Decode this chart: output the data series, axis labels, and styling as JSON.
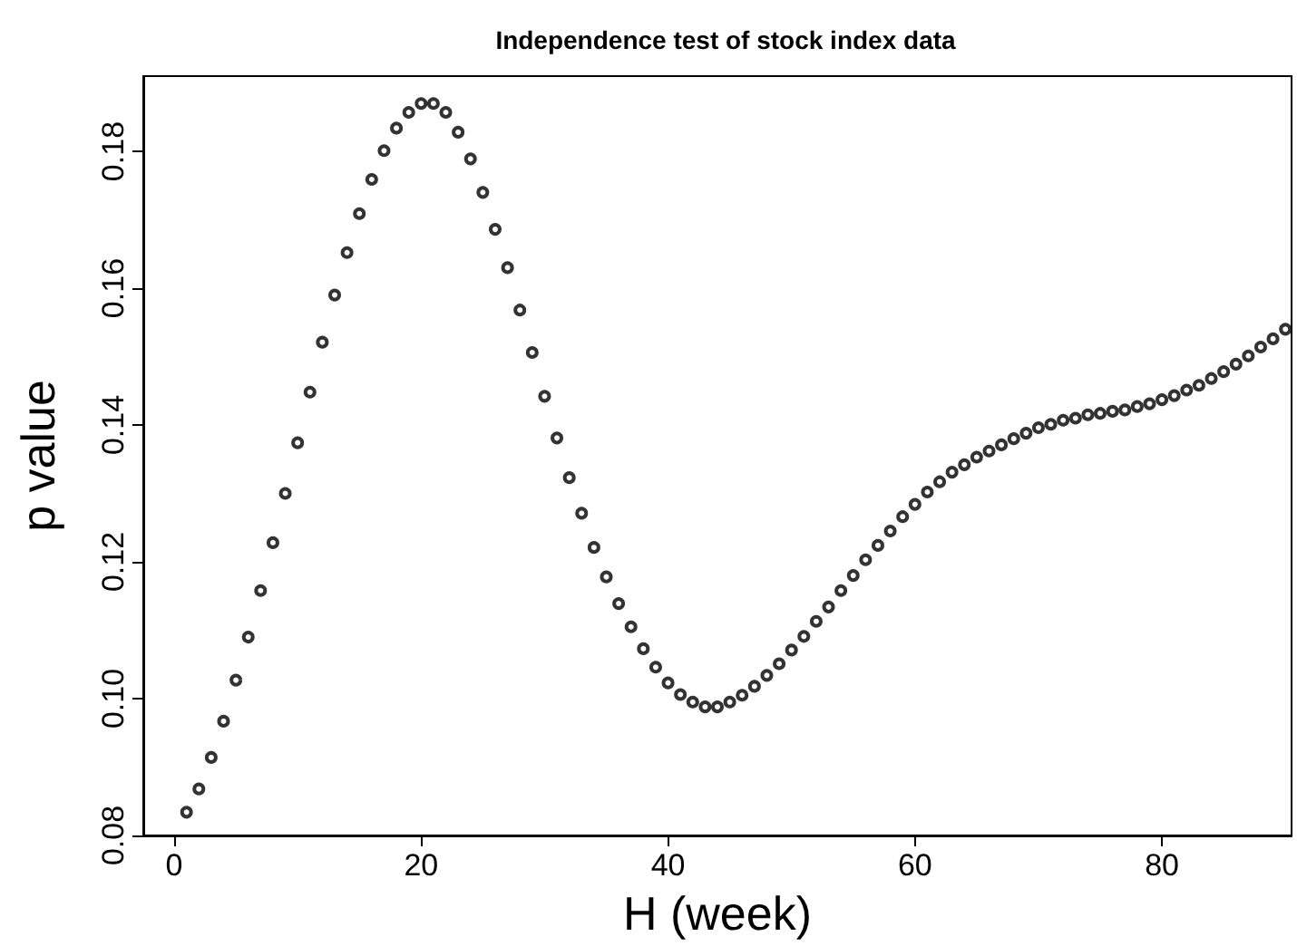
{
  "chart_data": {
    "type": "scatter",
    "title": "Independence test of stock index data",
    "xlabel": "H (week)",
    "ylabel": "p value",
    "x": [
      1,
      2,
      3,
      4,
      5,
      6,
      7,
      8,
      9,
      10,
      11,
      12,
      13,
      14,
      15,
      16,
      17,
      18,
      19,
      20,
      21,
      22,
      23,
      24,
      25,
      26,
      27,
      28,
      29,
      30,
      31,
      32,
      33,
      34,
      35,
      36,
      37,
      38,
      39,
      40,
      41,
      42,
      43,
      44,
      45,
      46,
      47,
      48,
      49,
      50,
      51,
      52,
      53,
      54,
      55,
      56,
      57,
      58,
      59,
      60,
      61,
      62,
      63,
      64,
      65,
      66,
      67,
      68,
      69,
      70,
      71,
      72,
      73,
      74,
      75,
      76,
      77,
      78,
      79,
      80,
      81,
      82,
      83,
      84,
      85,
      86,
      87,
      88,
      89,
      90
    ],
    "series": [
      {
        "color": "#000000",
        "values": [
          0.0834,
          0.0868,
          0.0914,
          0.0967,
          0.1027,
          0.109,
          0.1158,
          0.1228,
          0.13,
          0.1374,
          0.1448,
          0.1521,
          0.159,
          0.1652,
          0.1709,
          0.1759,
          0.1801,
          0.1834,
          0.1857,
          0.187,
          0.187,
          0.1857,
          0.1828,
          0.1789,
          0.174,
          0.1686,
          0.163,
          0.1568,
          0.1506,
          0.1442,
          0.1381,
          0.1323,
          0.1271,
          0.1221,
          0.1178,
          0.1139,
          0.1105,
          0.1073,
          0.1046,
          0.1023,
          0.1006,
          0.0995,
          0.0988,
          0.0988,
          0.0995,
          0.1005,
          0.1018,
          0.1034,
          0.1051,
          0.1071,
          0.1091,
          0.1113,
          0.1134,
          0.1158,
          0.118,
          0.1203,
          0.1224,
          0.1245,
          0.1266,
          0.1284,
          0.1302,
          0.1317,
          0.1331,
          0.1342,
          0.1353,
          0.1362,
          0.1371,
          0.138,
          0.1388,
          0.1396,
          0.1401,
          0.1407,
          0.141,
          0.1415,
          0.1417,
          0.142,
          0.1422,
          0.1427,
          0.1431,
          0.1437,
          0.1443,
          0.1451,
          0.1458,
          0.1468,
          0.1478,
          0.1489,
          0.1501,
          0.1514,
          0.1526,
          0.154
        ]
      }
    ],
    "xlim": [
      -2.5,
      90.5
    ],
    "xticks": [
      0,
      20,
      40,
      60,
      80
    ],
    "ylim": [
      0.08,
      0.191
    ],
    "yticks": [
      {
        "value": 0.08,
        "label": "0.08"
      },
      {
        "value": 0.1,
        "label": "0.10"
      },
      {
        "value": 0.12,
        "label": "0.12"
      },
      {
        "value": 0.14,
        "label": "0.14"
      },
      {
        "value": 0.16,
        "label": "0.16"
      },
      {
        "value": 0.18,
        "label": "0.18"
      }
    ],
    "marker": "circle",
    "grid": false
  }
}
